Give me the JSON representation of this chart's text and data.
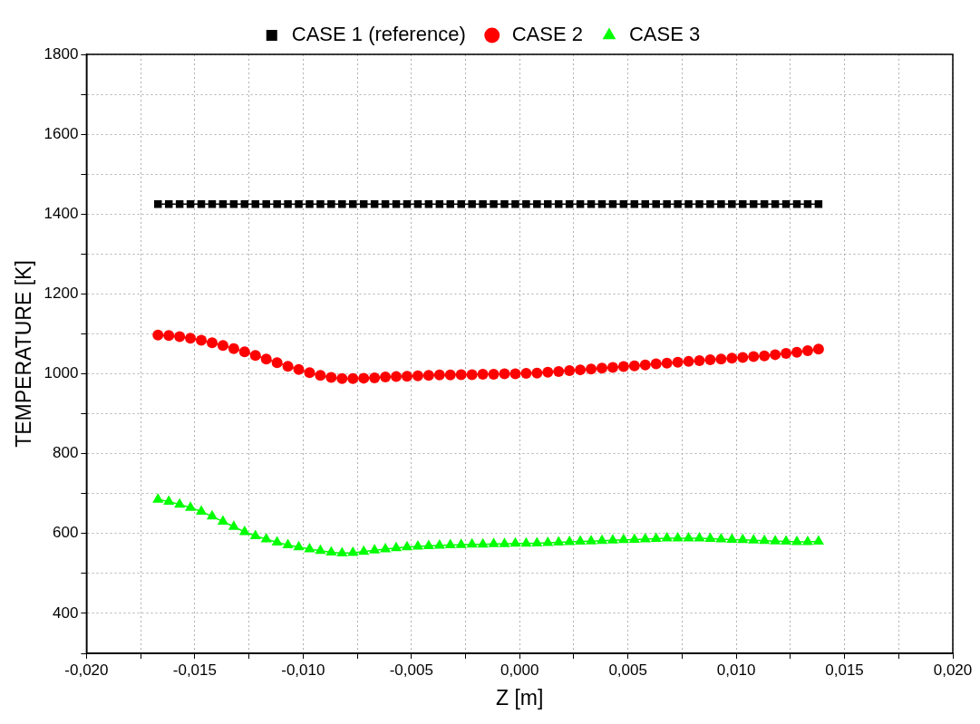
{
  "chart_data": {
    "type": "line",
    "xlabel": "Z [m]",
    "ylabel": "TEMPERATURE [K]",
    "x": [
      -0.0167,
      -0.0162,
      -0.0157,
      -0.0152,
      -0.0147,
      -0.0142,
      -0.0137,
      -0.0132,
      -0.0127,
      -0.0122,
      -0.0117,
      -0.0112,
      -0.0107,
      -0.0102,
      -0.0097,
      -0.0092,
      -0.0087,
      -0.0082,
      -0.0077,
      -0.0072,
      -0.0067,
      -0.0062,
      -0.0057,
      -0.0052,
      -0.0047,
      -0.0042,
      -0.0037,
      -0.0032,
      -0.0027,
      -0.0022,
      -0.0017,
      -0.0012,
      -0.0007,
      -0.0002,
      0.0003,
      0.0008,
      0.0013,
      0.0018,
      0.0023,
      0.0028,
      0.0033,
      0.0038,
      0.0043,
      0.0048,
      0.0053,
      0.0058,
      0.0063,
      0.0068,
      0.0073,
      0.0078,
      0.0083,
      0.0088,
      0.0093,
      0.0098,
      0.0103,
      0.0108,
      0.0113,
      0.0118,
      0.0123,
      0.0128,
      0.0133,
      0.0138
    ],
    "series": [
      {
        "name": "CASE 1 (reference)",
        "color": "#000000",
        "marker": "square",
        "values": [
          1425,
          1425,
          1425,
          1425,
          1425,
          1425,
          1425,
          1425,
          1425,
          1425,
          1425,
          1425,
          1425,
          1425,
          1425,
          1425,
          1425,
          1425,
          1425,
          1425,
          1425,
          1425,
          1425,
          1425,
          1425,
          1425,
          1425,
          1425,
          1425,
          1425,
          1425,
          1425,
          1425,
          1425,
          1425,
          1425,
          1425,
          1425,
          1425,
          1425,
          1425,
          1425,
          1425,
          1425,
          1425,
          1425,
          1425,
          1425,
          1425,
          1425,
          1425,
          1425,
          1425,
          1425,
          1425,
          1425,
          1425,
          1425,
          1425,
          1425,
          1425,
          1425
        ]
      },
      {
        "name": "CASE 2",
        "color": "#ff0000",
        "marker": "circle",
        "values": [
          1097,
          1096,
          1093,
          1089,
          1084,
          1078,
          1071,
          1063,
          1055,
          1046,
          1037,
          1028,
          1019,
          1011,
          1003,
          996,
          991,
          988,
          988,
          989,
          990,
          992,
          993,
          994,
          995,
          996,
          997,
          997,
          998,
          998,
          999,
          999,
          1000,
          1000,
          1001,
          1002,
          1004,
          1006,
          1008,
          1010,
          1012,
          1014,
          1016,
          1018,
          1020,
          1022,
          1025,
          1027,
          1029,
          1031,
          1033,
          1035,
          1037,
          1039,
          1041,
          1043,
          1045,
          1048,
          1051,
          1054,
          1058,
          1062
        ]
      },
      {
        "name": "CASE 3",
        "color": "#00ff00",
        "marker": "triangle",
        "values": [
          685,
          680,
          673,
          665,
          655,
          643,
          630,
          617,
          604,
          594,
          586,
          578,
          571,
          566,
          561,
          557,
          553,
          551,
          552,
          555,
          558,
          561,
          564,
          566,
          568,
          569,
          570,
          571,
          572,
          573,
          573,
          574,
          574,
          575,
          575,
          576,
          577,
          578,
          579,
          580,
          581,
          582,
          583,
          584,
          585,
          586,
          587,
          588,
          588,
          588,
          588,
          587,
          586,
          585,
          584,
          583,
          582,
          581,
          580,
          579,
          579,
          580
        ]
      }
    ],
    "xlim": [
      -0.02,
      0.02
    ],
    "xticks": [
      {
        "value": -0.02,
        "label": "-0,020"
      },
      {
        "value": -0.0175,
        "label": null
      },
      {
        "value": -0.015,
        "label": "-0,015"
      },
      {
        "value": -0.0125,
        "label": null
      },
      {
        "value": -0.01,
        "label": "-0,010"
      },
      {
        "value": -0.0075,
        "label": null
      },
      {
        "value": -0.005,
        "label": "-0,005"
      },
      {
        "value": -0.0025,
        "label": null
      },
      {
        "value": 0,
        "label": "0,000"
      },
      {
        "value": 0.0025,
        "label": null
      },
      {
        "value": 0.005,
        "label": "0,005"
      },
      {
        "value": 0.0075,
        "label": null
      },
      {
        "value": 0.01,
        "label": "0,010"
      },
      {
        "value": 0.0125,
        "label": null
      },
      {
        "value": 0.015,
        "label": "0,015"
      },
      {
        "value": 0.0175,
        "label": null
      },
      {
        "value": 0.02,
        "label": "0,020"
      }
    ],
    "ylim": [
      300,
      1800
    ],
    "yticks": [
      {
        "value": 300,
        "label": null
      },
      400,
      {
        "value": 500,
        "label": null
      },
      600,
      {
        "value": 700,
        "label": null
      },
      800,
      {
        "value": 900,
        "label": null
      },
      1000,
      {
        "value": 1100,
        "label": null
      },
      1200,
      {
        "value": 1300,
        "label": null
      },
      1400,
      {
        "value": 1500,
        "label": null
      },
      1600,
      {
        "value": 1700,
        "label": null
      },
      1800
    ],
    "grid": true,
    "legend": "top",
    "line_style": "solid"
  }
}
